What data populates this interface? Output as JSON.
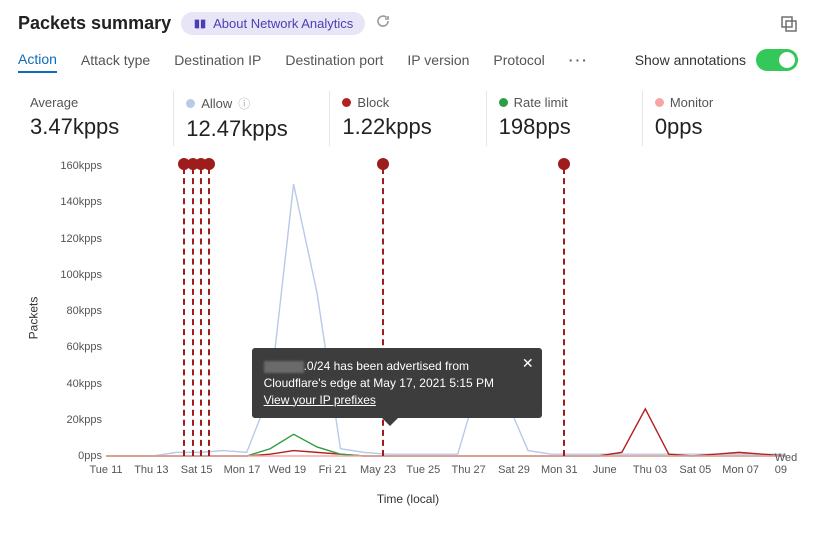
{
  "header": {
    "title": "Packets summary",
    "link_label": "About Network Analytics"
  },
  "tabs": [
    "Action",
    "Attack type",
    "Destination IP",
    "Destination port",
    "IP version",
    "Protocol"
  ],
  "active_tab": 0,
  "toggle": {
    "label": "Show annotations",
    "on": true
  },
  "stats": [
    {
      "label": "Average",
      "value": "3.47kpps",
      "color": null
    },
    {
      "label": "Allow",
      "value": "12.47kpps",
      "color": "#b9c9e8",
      "info": true
    },
    {
      "label": "Block",
      "value": "1.22kpps",
      "color": "#b22222"
    },
    {
      "label": "Rate limit",
      "value": "198pps",
      "color": "#2e9e44"
    },
    {
      "label": "Monitor",
      "value": "0pps",
      "color": "#f6a5a5"
    }
  ],
  "chart": {
    "type": "line",
    "y_label": "Packets",
    "x_label": "Time (local)",
    "background_color": "#ffffff",
    "ylim": [
      0,
      160
    ],
    "y_unit_suffix": "kpps",
    "y_ticks": [
      0,
      20,
      40,
      60,
      80,
      100,
      120,
      140,
      160
    ],
    "x_ticks": [
      "Tue 11",
      "Thu 13",
      "Sat 15",
      "Mon 17",
      "Wed 19",
      "Fri 21",
      "May 23",
      "Tue 25",
      "Thu 27",
      "Sat 29",
      "Mon 31",
      "June",
      "Thu 03",
      "Sat 05",
      "Mon 07",
      "Wed 09"
    ],
    "grid_color": "#e8e8e8",
    "line_width": 1.4,
    "series": [
      {
        "name": "Allow",
        "color": "#b9c9e8",
        "points": [
          0,
          0,
          0,
          2,
          2,
          3,
          2,
          35,
          150,
          90,
          4,
          2,
          1,
          1,
          1,
          1,
          45,
          33,
          3,
          1,
          1,
          1,
          1,
          1,
          1,
          1,
          1,
          1,
          1,
          1
        ]
      },
      {
        "name": "Block",
        "color": "#b22222",
        "points": [
          0,
          0,
          0,
          0,
          0,
          0,
          0,
          1,
          3,
          2,
          1,
          0,
          0,
          0,
          0,
          0,
          0,
          0,
          0,
          0,
          0,
          0,
          2,
          26,
          1,
          0,
          1,
          2,
          1,
          0
        ]
      },
      {
        "name": "Rate limit",
        "color": "#2e9e44",
        "points": [
          0,
          0,
          0,
          0,
          0,
          0,
          0,
          4,
          12,
          5,
          1,
          0,
          0,
          0,
          0,
          0,
          0,
          0,
          0,
          0,
          0,
          0,
          0,
          0,
          0,
          0,
          0,
          0,
          0,
          0
        ]
      },
      {
        "name": "Monitor",
        "color": "#f6a5a5",
        "points": [
          0,
          0,
          0,
          0,
          0,
          0,
          0,
          0,
          0,
          0,
          0,
          0,
          0,
          0,
          0,
          0,
          0,
          0,
          0,
          0,
          0,
          0,
          0,
          0,
          0,
          0,
          0,
          0,
          0,
          0
        ]
      }
    ],
    "annotations": {
      "marker_color": "#9e1c1c",
      "line_color": "#9e1c1c",
      "marker_radius": 6,
      "clusters": [
        {
          "x_index": 2.0,
          "count": 4
        },
        {
          "x_index": 6.1,
          "count": 1
        },
        {
          "x_index": 10.1,
          "count": 1
        }
      ]
    },
    "tooltip": {
      "x_index": 6.3,
      "text_prefix": ".0/24 has been advertised from Cloudflare's edge at May 17, 2021 5:15 PM",
      "link": "View your IP prefixes",
      "has_redacted_prefix": true
    }
  }
}
